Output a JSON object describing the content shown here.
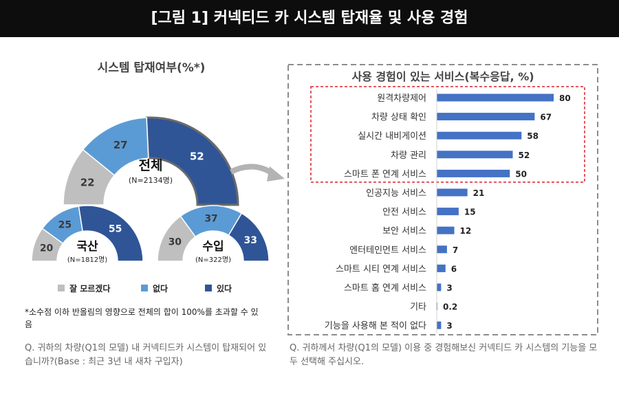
{
  "banner_title": "[그림 1] 커넥티드 카 시스템 탑재율 및 사용 경험",
  "colors": {
    "dont_know": "#bfbfbf",
    "no": "#5b9bd5",
    "yes": "#2f5597",
    "highlight": "#d9202a",
    "bars": "#4472c4"
  },
  "chart_data": [
    {
      "type": "pie",
      "title": "시스템 탑재여부(%*)",
      "legend": [
        "잘 모르겠다",
        "없다",
        "있다"
      ],
      "legend_placement": "bottom",
      "gauges": [
        {
          "label": "전체",
          "sample": "(N=2134명)",
          "values": [
            22,
            27,
            52
          ]
        },
        {
          "label": "국산",
          "sample": "(N=1812명)",
          "values": [
            20,
            25,
            55
          ]
        },
        {
          "label": "수입",
          "sample": "(N=322명)",
          "values": [
            30,
            37,
            33
          ]
        }
      ]
    },
    {
      "type": "bar",
      "orientation": "horizontal",
      "title": "사용 경험이 있는 서비스(복수응답, %)",
      "categories": [
        "원격차량제어",
        "차량 상태 확인",
        "실시간 내비게이션",
        "차량 관리",
        "스마트 폰 연계 서비스",
        "인공지능 서비스",
        "안전 서비스",
        "보안 서비스",
        "엔터테인먼트 서비스",
        "스마트 시티 연계 서비스",
        "스마트 홈 연계 서비스",
        "기타",
        "기능을 사용해 본 적이 없다"
      ],
      "values": [
        80,
        67,
        58,
        52,
        50,
        21,
        15,
        12,
        7,
        6,
        3,
        0.2,
        3
      ],
      "value_labels": [
        "80",
        "67",
        "58",
        "52",
        "50",
        "21",
        "15",
        "12",
        "7",
        "6",
        "3",
        "0.2",
        "3"
      ],
      "highlighted_top": 5,
      "xlim": [
        0,
        90
      ]
    }
  ],
  "footnote": "*소수점 이하 반올림의 영향으로 전체의 합이 100%를 초과할 수 있음",
  "question_left": "Q. 귀하의 차량(Q1의 모델) 내 커넥티드카 시스템이 탑재되어 있습니까?(Base : 최근 3년 내 새차 구입자)",
  "question_right": "Q. 귀하께서 차량(Q1의 모델) 이용 중 경험해보신 커넥티드 카 시스템의 기능을 모두 선택해 주십시오."
}
